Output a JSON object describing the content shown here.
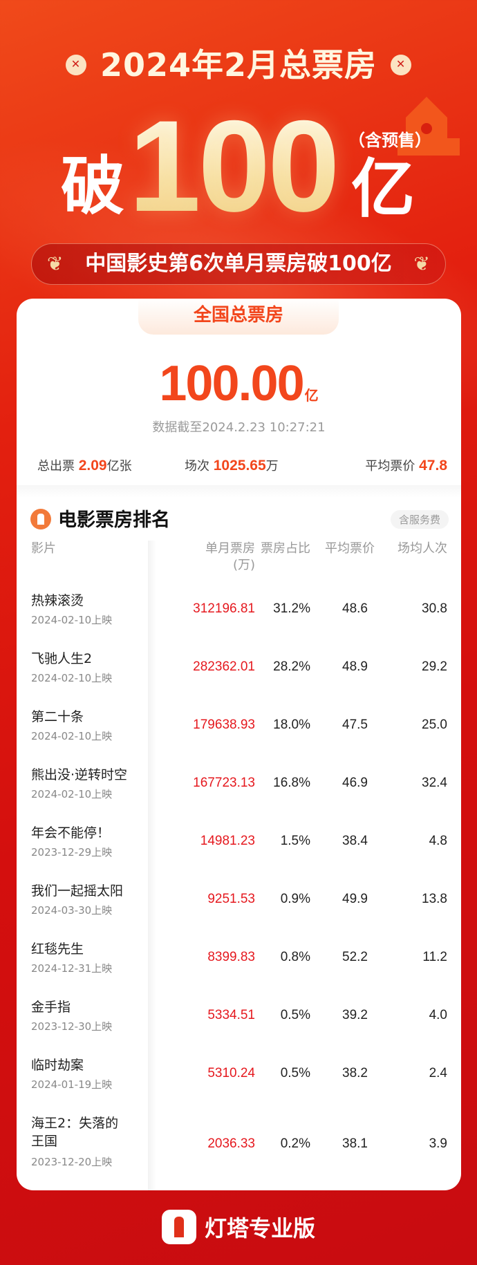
{
  "header": {
    "title": "2024年2月总票房",
    "headline_prefix": "破",
    "headline_number": "100",
    "headline_unit": "亿",
    "presale_note": "（含预售）",
    "subtitle": "中国影史第6次单月票房破100亿"
  },
  "summary": {
    "tab_label": "全国总票房",
    "total_value": "100.00",
    "total_unit": "亿",
    "timestamp": "数据截至2024.2.23 10:27:21",
    "stats": [
      {
        "label": "总出票",
        "value": "2.09",
        "unit": "亿张"
      },
      {
        "label": "场次",
        "value": "1025.65",
        "unit": "万"
      },
      {
        "label": "平均票价",
        "value": "47.8",
        "unit": ""
      }
    ]
  },
  "ranking": {
    "title": "电影票房排名",
    "badge": "含服务费",
    "columns": [
      "影片",
      "单月票房",
      "(万)",
      "票房占比",
      "平均票价",
      "场均人次"
    ],
    "rows": [
      {
        "name": "热辣滚烫",
        "date": "2024-02-10上映",
        "box_office": "312196.81",
        "share": "31.2%",
        "avg_price": "48.6",
        "avg_attendance": "30.8"
      },
      {
        "name": "飞驰人生2",
        "date": "2024-02-10上映",
        "box_office": "282362.01",
        "share": "28.2%",
        "avg_price": "48.9",
        "avg_attendance": "29.2"
      },
      {
        "name": "第二十条",
        "date": "2024-02-10上映",
        "box_office": "179638.93",
        "share": "18.0%",
        "avg_price": "47.5",
        "avg_attendance": "25.0"
      },
      {
        "name": "熊出没·逆转时空",
        "date": "2024-02-10上映",
        "box_office": "167723.13",
        "share": "16.8%",
        "avg_price": "46.9",
        "avg_attendance": "32.4"
      },
      {
        "name": "年会不能停！",
        "date": "2023-12-29上映",
        "box_office": "14981.23",
        "share": "1.5%",
        "avg_price": "38.4",
        "avg_attendance": "4.8"
      },
      {
        "name": "我们一起摇太阳",
        "date": "2024-03-30上映",
        "box_office": "9251.53",
        "share": "0.9%",
        "avg_price": "49.9",
        "avg_attendance": "13.8"
      },
      {
        "name": "红毯先生",
        "date": "2024-12-31上映",
        "box_office": "8399.83",
        "share": "0.8%",
        "avg_price": "52.2",
        "avg_attendance": "11.2"
      },
      {
        "name": "金手指",
        "date": "2023-12-30上映",
        "box_office": "5334.51",
        "share": "0.5%",
        "avg_price": "39.2",
        "avg_attendance": "4.0"
      },
      {
        "name": "临时劫案",
        "date": "2024-01-19上映",
        "box_office": "5310.24",
        "share": "0.5%",
        "avg_price": "38.2",
        "avg_attendance": "2.4"
      },
      {
        "name": "海王2：失落的王国",
        "date": "2023-12-20上映",
        "box_office": "2036.33",
        "share": "0.2%",
        "avg_price": "38.1",
        "avg_attendance": "3.9"
      }
    ]
  },
  "footer": {
    "brand": "灯塔专业版"
  },
  "colors": {
    "accent": "#f2461c",
    "box_office_red": "#e5181e",
    "background": "#d40f0e"
  }
}
